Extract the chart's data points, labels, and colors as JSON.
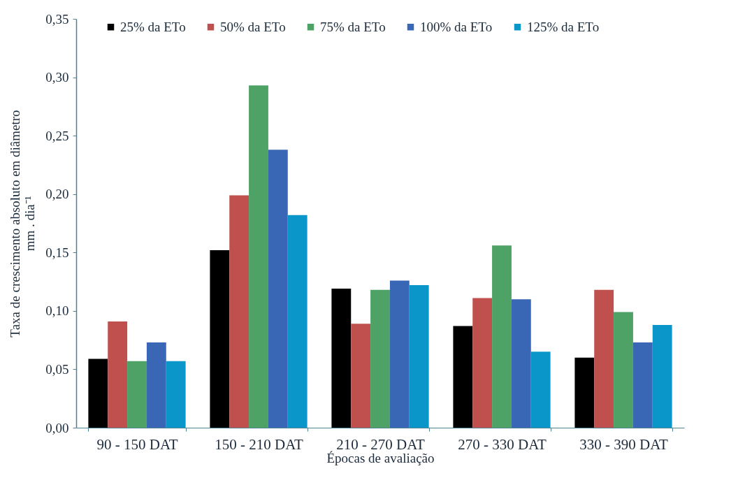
{
  "chart_data": {
    "type": "bar",
    "xlabel": "Épocas de avaliação",
    "ylabel": "Taxa de crescimento absoluto em diâmetro\nmm . dia⁻¹",
    "categories": [
      "90 - 150 DAT",
      "150 - 210 DAT",
      "210 - 270 DAT",
      "270 - 330 DAT",
      "330 - 390 DAT"
    ],
    "series": [
      {
        "name": "25% da ETo",
        "color": "#000000",
        "values": [
          0.059,
          0.152,
          0.119,
          0.087,
          0.06
        ]
      },
      {
        "name": "50% da ETo",
        "color": "#c0504d",
        "values": [
          0.091,
          0.199,
          0.089,
          0.111,
          0.118
        ]
      },
      {
        "name": "75% da ETo",
        "color": "#4ea265",
        "values": [
          0.057,
          0.293,
          0.118,
          0.156,
          0.099
        ]
      },
      {
        "name": "100% da ETo",
        "color": "#3a67b5",
        "values": [
          0.073,
          0.238,
          0.126,
          0.11,
          0.073
        ]
      },
      {
        "name": "125% da ETo",
        "color": "#0a96c8",
        "values": [
          0.057,
          0.182,
          0.122,
          0.065,
          0.088
        ]
      }
    ],
    "ylim": [
      0,
      0.35
    ],
    "yticks": [
      {
        "value": 0,
        "label": "0,00"
      },
      {
        "value": 0.05,
        "label": "0,05"
      },
      {
        "value": 0.1,
        "label": "0,10"
      },
      {
        "value": 0.15,
        "label": "0,15"
      },
      {
        "value": 0.2,
        "label": "0,20"
      },
      {
        "value": 0.25,
        "label": "0,25"
      },
      {
        "value": 0.3,
        "label": "0,30"
      },
      {
        "value": 0.35,
        "label": "0,35"
      }
    ],
    "legend": "top"
  }
}
